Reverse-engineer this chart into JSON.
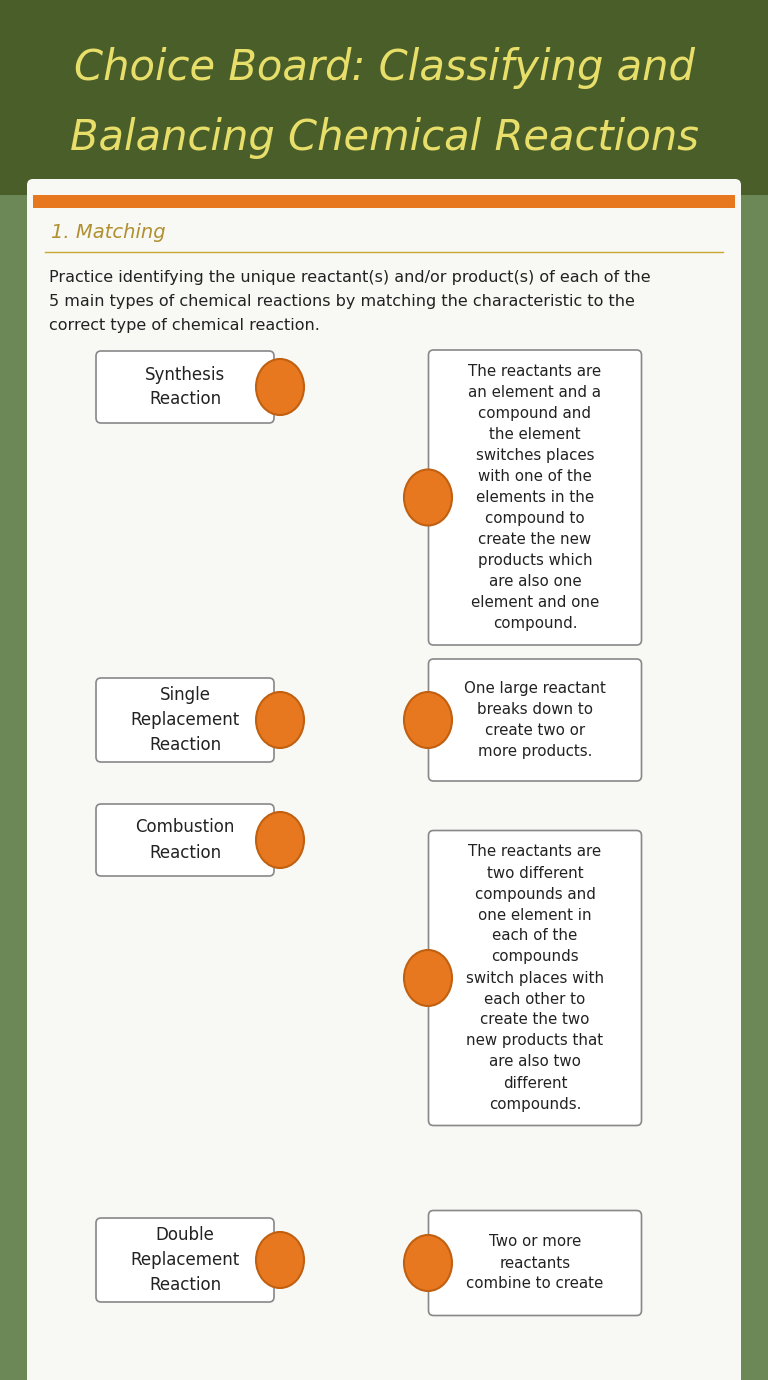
{
  "title_line1": "Choice Board: Classifying and",
  "title_line2": "Balancing Chemical Reactions",
  "title_color": "#e8de6a",
  "header_bg": "#4a5e2a",
  "sidebar_color": "#7a9a6a",
  "content_bg": "#f8f8f4",
  "orange_bar_color": "#e87820",
  "section_label": "1. Matching",
  "section_label_color": "#b09030",
  "divider_color": "#c8a830",
  "text_color": "#222222",
  "box_edge_color": "#888888",
  "orange_color": "#e87820",
  "orange_edge": "#c06010",
  "intro_lines": [
    "Practice identifying the unique reactant(s) and/or product(s) of each of the",
    "5 main types of chemical reactions by matching the characteristic to the",
    "correct type of chemical reaction."
  ],
  "left_labels": [
    "Synthesis\nReaction",
    "Single\nReplacement\nReaction",
    "Combustion\nReaction",
    "Double\nReplacement\nReaction"
  ],
  "right_texts": [
    "The reactants are\nan element and a\ncompound and\nthe element\nswitches places\nwith one of the\nelements in the\ncompound to\ncreate the new\nproducts which\nare also one\nelement and one\ncompound.",
    "One large reactant\nbreaks down to\ncreate two or\nmore products.",
    "The reactants are\ntwo different\ncompounds and\none element in\neach of the\ncompounds\nswitch places with\neach other to\ncreate the two\nnew products that\nare also two\ndifferent\ncompounds.",
    "Two or more\nreactants\ncombine to create"
  ]
}
